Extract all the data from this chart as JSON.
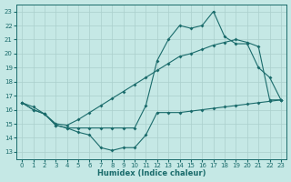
{
  "xlabel": "Humidex (Indice chaleur)",
  "xlim": [
    -0.5,
    23.5
  ],
  "ylim": [
    12.5,
    23.5
  ],
  "xticks": [
    0,
    1,
    2,
    3,
    4,
    5,
    6,
    7,
    8,
    9,
    10,
    11,
    12,
    13,
    14,
    15,
    16,
    17,
    18,
    19,
    20,
    21,
    22,
    23
  ],
  "yticks": [
    13,
    14,
    15,
    16,
    17,
    18,
    19,
    20,
    21,
    22,
    23
  ],
  "bg_color": "#c5e8e5",
  "grid_color": "#aacfcc",
  "line_color": "#1a6b6b",
  "line1_x": [
    0,
    1,
    2,
    3,
    4,
    5,
    6,
    7,
    8,
    9,
    10,
    11,
    12,
    13,
    14,
    15,
    16,
    17,
    18,
    19,
    20,
    21,
    22,
    23
  ],
  "line1_y": [
    16.5,
    16.0,
    15.7,
    14.9,
    14.7,
    14.4,
    14.2,
    13.3,
    13.1,
    13.3,
    13.3,
    14.2,
    15.8,
    15.8,
    15.8,
    15.9,
    16.0,
    16.1,
    16.2,
    16.3,
    16.4,
    16.5,
    16.6,
    16.7
  ],
  "line2_x": [
    0,
    1,
    2,
    3,
    4,
    5,
    6,
    7,
    8,
    9,
    10,
    11,
    12,
    13,
    14,
    15,
    16,
    17,
    18,
    19,
    20,
    21,
    22,
    23
  ],
  "line2_y": [
    16.5,
    16.0,
    15.7,
    14.9,
    14.7,
    14.7,
    14.7,
    14.7,
    14.7,
    14.7,
    14.7,
    16.3,
    19.5,
    21.0,
    22.0,
    21.8,
    22.0,
    23.0,
    21.2,
    20.7,
    20.7,
    19.0,
    18.3,
    16.7
  ],
  "line3_x": [
    0,
    1,
    2,
    3,
    4,
    5,
    6,
    7,
    8,
    9,
    10,
    11,
    12,
    13,
    14,
    15,
    16,
    17,
    18,
    19,
    20,
    21,
    22,
    23
  ],
  "line3_y": [
    16.5,
    16.2,
    15.7,
    15.0,
    14.9,
    15.3,
    15.8,
    16.3,
    16.8,
    17.3,
    17.8,
    18.3,
    18.8,
    19.3,
    19.8,
    20.0,
    20.3,
    20.6,
    20.8,
    21.0,
    20.8,
    20.5,
    16.7,
    16.7
  ]
}
